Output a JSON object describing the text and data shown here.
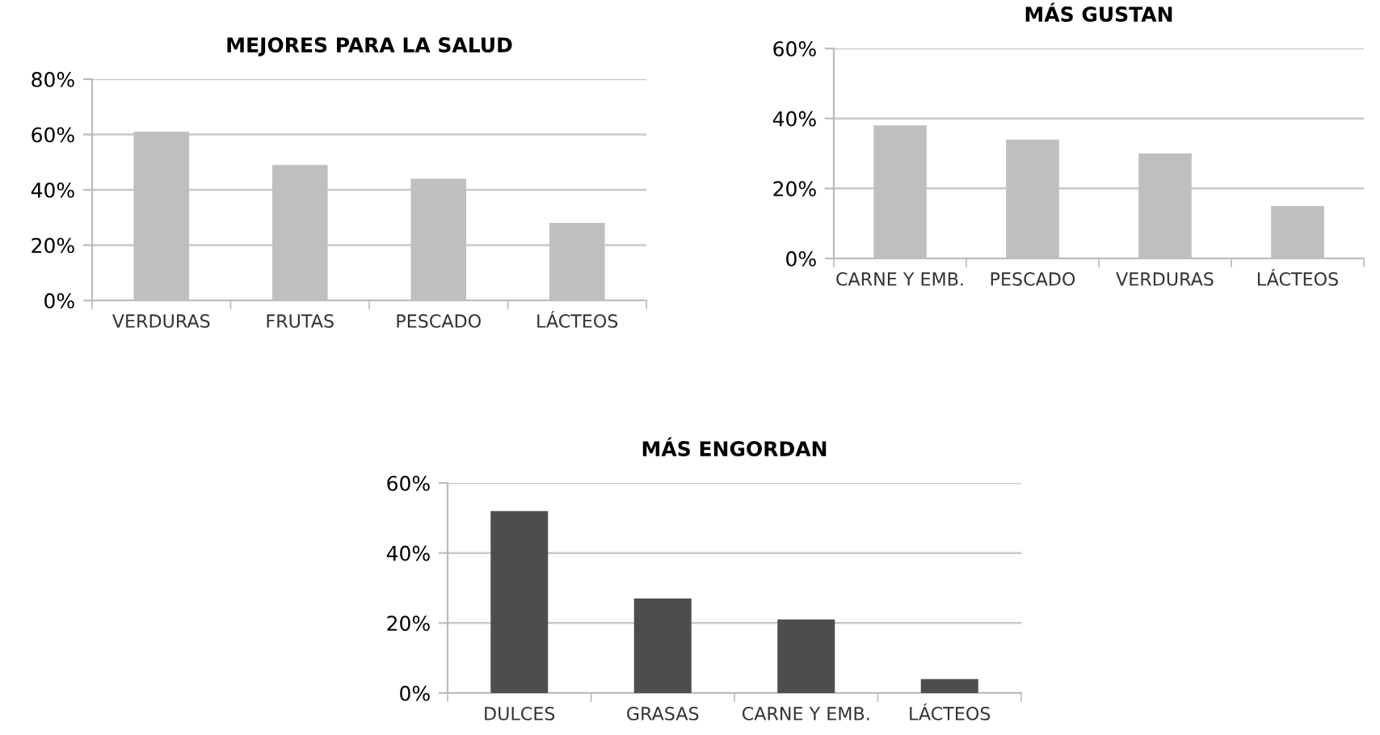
{
  "chart_data": [
    {
      "type": "bar",
      "title": "MEJORES PARA LA SALUD",
      "categories": [
        "VERDURAS",
        "FRUTAS",
        "PESCADO",
        "LÁCTEOS"
      ],
      "values": [
        61,
        49,
        44,
        28
      ],
      "color": "#bfbfbf",
      "ylim": [
        0,
        80
      ],
      "yticks": [
        {
          "value": 0,
          "label": "0%"
        },
        {
          "value": 20,
          "label": "20%"
        },
        {
          "value": 40,
          "label": "40%"
        },
        {
          "value": 60,
          "label": "60%"
        },
        {
          "value": 80,
          "label": "80%"
        }
      ],
      "grid": "y",
      "legend": false
    },
    {
      "type": "bar",
      "title": "MÁS GUSTAN",
      "categories": [
        "CARNE Y EMB.",
        "PESCADO",
        "VERDURAS",
        "LÁCTEOS"
      ],
      "values": [
        38,
        34,
        30,
        15
      ],
      "color": "#bfbfbf",
      "ylim": [
        0,
        60
      ],
      "yticks": [
        {
          "value": 0,
          "label": "0%"
        },
        {
          "value": 20,
          "label": "20%"
        },
        {
          "value": 40,
          "label": "40%"
        },
        {
          "value": 60,
          "label": "60%"
        }
      ],
      "grid": "y",
      "legend": false
    },
    {
      "type": "bar",
      "title": "MÁS ENGORDAN",
      "categories": [
        "DULCES",
        "GRASAS",
        "CARNE Y EMB.",
        "LÁCTEOS"
      ],
      "values": [
        52,
        27,
        21,
        4
      ],
      "color": "#4d4d4d",
      "ylim": [
        0,
        60
      ],
      "yticks": [
        {
          "value": 0,
          "label": "0%"
        },
        {
          "value": 20,
          "label": "20%"
        },
        {
          "value": 40,
          "label": "40%"
        },
        {
          "value": 60,
          "label": "60%"
        }
      ],
      "grid": "y",
      "legend": false
    }
  ]
}
